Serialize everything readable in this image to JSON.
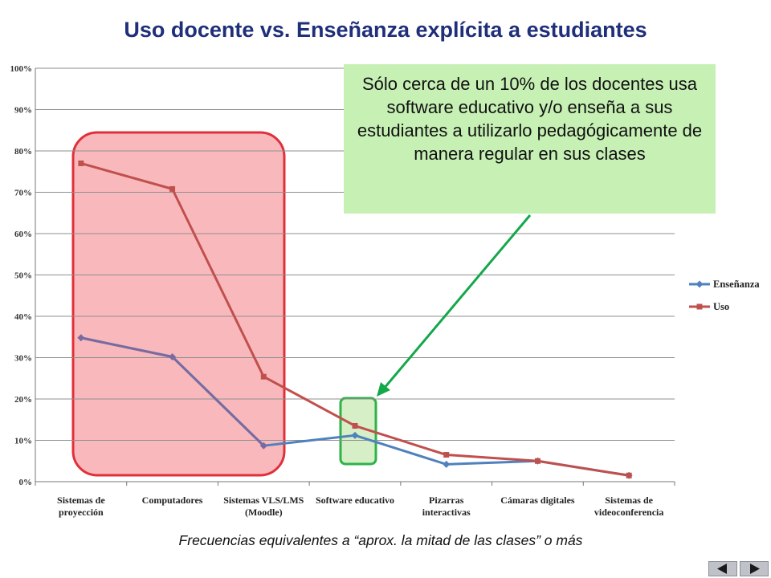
{
  "slide": {
    "title": "Uso docente vs. Enseñanza explícita a estudiantes",
    "callout_text": "Sólo cerca de un 10% de los docentes usa software educativo y/o enseña a sus estudiantes a utilizarlo pedagógicamente de manera regular en sus clases",
    "footer": "Frecuencias equivalentes a “aprox. la mitad de las clases” o más",
    "nav": {
      "prev_icon": "triangle-left-icon",
      "next_icon": "triangle-right-icon"
    }
  },
  "colors": {
    "title": "#1f2f7a",
    "ensenanza": "#4f81bd",
    "uso": "#c0504d",
    "overlap": "#7a6aa0",
    "highlight_red_fill": "#f9b9bc",
    "highlight_red_border": "#e0303a",
    "highlight_green_fill": "#d7efc6",
    "highlight_green_border": "#2eb34a",
    "callout_fill": "#c6f0b4",
    "arrow": "#13a84a"
  },
  "chart_data": {
    "type": "line",
    "title": "",
    "xlabel": "",
    "ylabel": "",
    "ylim": [
      0,
      100
    ],
    "yticks": [
      "0%",
      "10%",
      "20%",
      "30%",
      "40%",
      "50%",
      "60%",
      "70%",
      "80%",
      "90%",
      "100%"
    ],
    "grid": true,
    "legend": "right",
    "categories": [
      [
        "Sistemas de",
        "proyección"
      ],
      [
        "Computadores"
      ],
      [
        "Sistemas VLS/LMS",
        "(Moodle)"
      ],
      [
        "Software educativo"
      ],
      [
        "Pizarras",
        "interactivas"
      ],
      [
        "Cámaras digitales"
      ],
      [
        "Sistemas de",
        "videoconferencia"
      ]
    ],
    "series": [
      {
        "name": "Enseñanza",
        "marker": "diamond",
        "values": [
          34.8,
          30.2,
          8.7,
          11.2,
          4.2,
          5.0,
          1.5
        ]
      },
      {
        "name": "Uso",
        "marker": "square",
        "values": [
          77.0,
          70.8,
          25.4,
          13.5,
          6.5,
          5.0,
          1.5
        ]
      }
    ]
  }
}
